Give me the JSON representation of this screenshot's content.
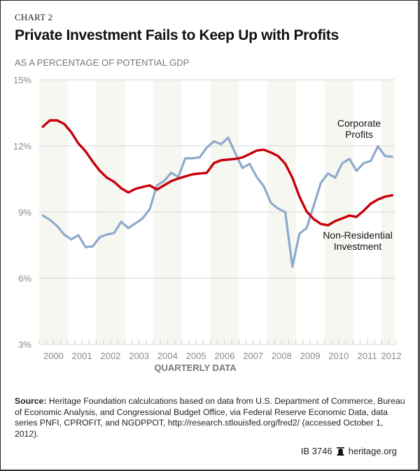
{
  "header": {
    "kicker": "CHART 2",
    "title": "Private Investment Fails to Keep Up with Profits",
    "subtitle": "AS A PERCENTAGE OF POTENTIAL GDP"
  },
  "chart_data": {
    "type": "line",
    "title": "Private Investment Fails to Keep Up with Profits",
    "subtitle": "AS A PERCENTAGE OF POTENTIAL GDP",
    "xlabel": "QUARTERLY DATA",
    "ylabel": "",
    "ylim": [
      3,
      15
    ],
    "yticks": [
      3,
      6,
      9,
      12,
      15
    ],
    "ytick_labels": [
      "3%",
      "6%",
      "9%",
      "12%",
      "15%"
    ],
    "x_start": "2000 Q1",
    "x_end": "2012 Q2",
    "xtick_labels": [
      "2000",
      "2001",
      "2002",
      "2003",
      "2004",
      "2005",
      "2006",
      "2007",
      "2008",
      "2009",
      "2010",
      "2011",
      "2012"
    ],
    "grid": "horizontal",
    "alternating_year_bands": true,
    "series": [
      {
        "name": "Corporate Profits",
        "label_lines": [
          "Corporate",
          "Profits"
        ],
        "color": "#8eaacb",
        "values": [
          8.84,
          8.65,
          8.37,
          7.98,
          7.76,
          7.95,
          7.41,
          7.44,
          7.86,
          7.98,
          8.05,
          8.56,
          8.27,
          8.49,
          8.71,
          9.13,
          10.21,
          10.4,
          10.78,
          10.59,
          11.44,
          11.44,
          11.48,
          11.92,
          12.21,
          12.08,
          12.37,
          11.67,
          11.0,
          11.19,
          10.59,
          10.17,
          9.41,
          9.16,
          9.0,
          6.52,
          8.02,
          8.27,
          9.29,
          10.33,
          10.75,
          10.56,
          11.22,
          11.41,
          10.87,
          11.22,
          11.32,
          11.98,
          11.54,
          11.51
        ]
      },
      {
        "name": "Non-Residential Investment",
        "label_lines": [
          "Non-Residential",
          "Investment"
        ],
        "color": "#c8000a",
        "values": [
          12.87,
          13.16,
          13.16,
          13.0,
          12.62,
          12.11,
          11.76,
          11.29,
          10.87,
          10.56,
          10.37,
          10.08,
          9.89,
          10.05,
          10.14,
          10.21,
          10.02,
          10.21,
          10.4,
          10.52,
          10.62,
          10.71,
          10.75,
          10.78,
          11.22,
          11.35,
          11.38,
          11.41,
          11.48,
          11.63,
          11.79,
          11.83,
          11.7,
          11.54,
          11.19,
          10.56,
          9.7,
          9.03,
          8.68,
          8.46,
          8.4,
          8.59,
          8.71,
          8.84,
          8.78,
          9.06,
          9.38,
          9.57,
          9.7,
          9.76
        ]
      }
    ]
  },
  "source": {
    "label": "Source:",
    "text": "Heritage Foundation calculcations based on data from U.S. Department of Commerce, Bureau of Economic Analysis, and Congressional Budget Office, via Federal Reserve Economic Data, data series PNFI, CPROFIT, and NGDPPOT, http://research.stlouisfed.org/fred2/ (accessed October 1, 2012)."
  },
  "footer": {
    "id": "IB 3746",
    "icon": "liberty-bell-icon",
    "site": "heritage.org"
  },
  "colors": {
    "band": "#f7f7f2",
    "grid": "#dddddd",
    "tick_text": "#8a8a8a"
  }
}
